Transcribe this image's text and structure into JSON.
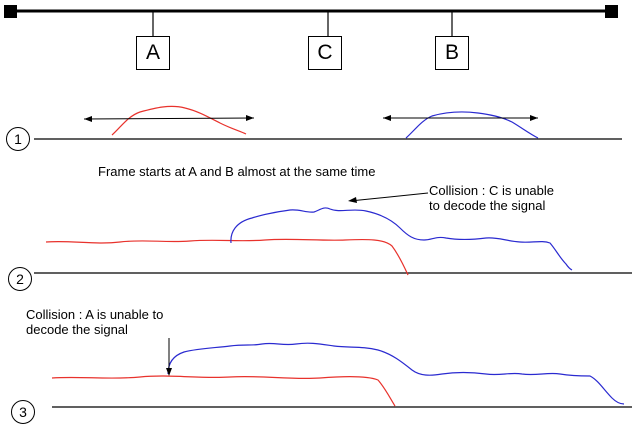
{
  "stations": {
    "a": "A",
    "b": "B",
    "c": "C"
  },
  "steps": {
    "one": "1",
    "two": "2",
    "three": "3"
  },
  "annotations": {
    "frame_start": "Frame starts at A and B almost at the same time",
    "collision_c": "Collision : C is unable\nto decode the signal",
    "collision_a": "Collision : A is unable to\ndecode the signal"
  },
  "colors": {
    "station_a_signal": "#e8322c",
    "station_b_signal": "#2a2ad0",
    "line": "#000000"
  }
}
